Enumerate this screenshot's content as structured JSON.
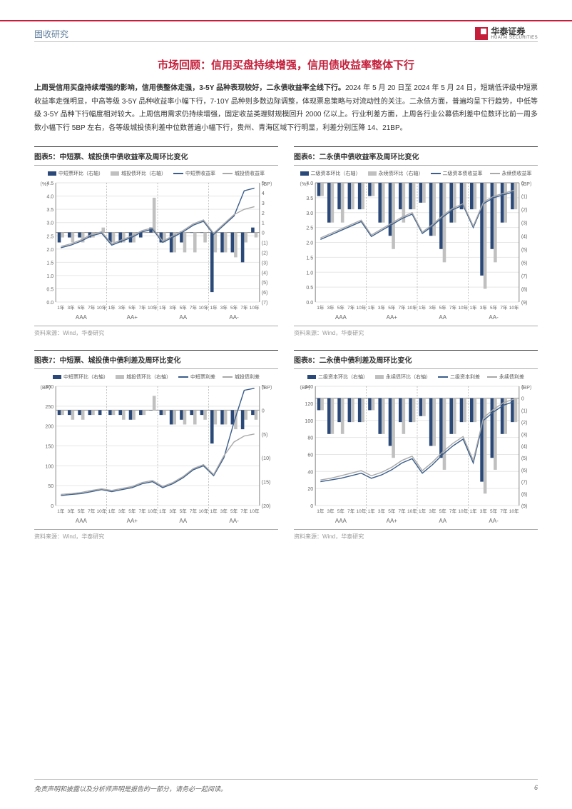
{
  "header": {
    "category": "固收研究",
    "logo_cn": "华泰证券",
    "logo_en": "HUATAI SECURITIES"
  },
  "section_title": "市场回顾：信用买盘持续增强，信用债收益率整体下行",
  "paragraph_strong": "上周受信用买盘持续增强的影响，信用债整体走强，3-5Y 品种表现较好，二永债收益率全线下行。",
  "paragraph_rest": "2024 年 5 月 20 日至 2024 年 5 月 24 日，短端低评级中短票收益率走强明显，中高等级 3-5Y 品种收益率小幅下行，7-10Y 品种则多数边际调整，体现票息策略与对流动性的关注。二永债方面，普遍均呈下行趋势，中低等级 3-5Y 品种下行幅度相对较大。上周信用需求仍持续增强，固定收益类理财规模回升 2000 亿以上。行业利差方面，上周各行业公募债利差中位数环比前一周多数小幅下行 5BP 左右，各等级城投债利差中位数普遍小幅下行，贵州、青海区域下行明显，利差分别压降 14、21BP。",
  "footer": {
    "disclaimer": "免责声明和披露以及分析师声明是报告的一部分，请务必一起阅读。",
    "page_number": "6"
  },
  "source_text": "资料来源：Wind，华泰研究",
  "xaxis_groups": [
    "AAA",
    "AA+",
    "AA",
    "AA-"
  ],
  "xaxis_tenors": [
    "1年",
    "3年",
    "5年",
    "7年",
    "10年"
  ],
  "colors": {
    "bar1": "#2a4978",
    "bar2": "#c0c0c0",
    "line1": "#3b5e8c",
    "line2": "#a9a9a9",
    "grid": "#e6e6e6",
    "axis": "#888888",
    "text": "#666666"
  },
  "chart5": {
    "title": "图表5：中短票、城投债中债收益率及周环比变化",
    "legend": [
      "中短票环比（右轴）",
      "城投债环比（右轴）",
      "中短票收益率",
      "城投债收益率"
    ],
    "y_left_label": "（%）",
    "y_right_label": "（BP）",
    "y_left": {
      "min": 0.0,
      "max": 4.5,
      "step": 0.5
    },
    "y_right": {
      "min": -7,
      "max": 5,
      "step": 1
    },
    "bars1": [
      -1,
      -0.5,
      -0.5,
      -0.5,
      0,
      -1,
      -1,
      -1,
      -0.5,
      0.5,
      -1,
      -2,
      -1,
      0,
      0,
      -6,
      -2,
      -2,
      -3,
      0.5
    ],
    "bars2": [
      -0.5,
      -1,
      -1,
      -0.5,
      0.5,
      -1,
      -1,
      -1,
      0,
      3.5,
      -1,
      -2,
      -2,
      -2,
      -1,
      -2,
      -2,
      -2.5,
      -1,
      -0.5
    ],
    "line1v": [
      2.05,
      2.15,
      2.3,
      2.5,
      2.6,
      2.15,
      2.3,
      2.45,
      2.65,
      2.75,
      2.25,
      2.45,
      2.65,
      2.9,
      3.05,
      2.55,
      2.9,
      3.25,
      4.2,
      4.3
    ],
    "line2v": [
      2.1,
      2.2,
      2.35,
      2.55,
      2.65,
      2.2,
      2.35,
      2.5,
      2.7,
      2.8,
      2.3,
      2.5,
      2.7,
      2.95,
      3.1,
      2.6,
      2.95,
      3.3,
      3.5,
      3.6
    ]
  },
  "chart6": {
    "title": "图表6：二永债中债收益率及周环比变化",
    "legend": [
      "二级资本环比（右轴）",
      "永续债环比（右轴）",
      "二级资本债收益率",
      "永续债收益率"
    ],
    "y_left_label": "（%）",
    "y_right_label": "（BP）",
    "y_left": {
      "min": 0.0,
      "max": 4.0,
      "step": 0.5
    },
    "y_right": {
      "min": -9,
      "max": 0,
      "step": 1
    },
    "bars1": [
      -1,
      -3,
      -2,
      -2,
      -2,
      -1,
      -3,
      -4,
      -2,
      -2,
      -1.5,
      -4,
      -5,
      -3,
      -2,
      -2,
      -7,
      -5,
      -3,
      -2
    ],
    "bars2": [
      -1,
      -3,
      -3,
      -2,
      -2,
      -1,
      -3,
      -5,
      -3,
      -2,
      -1.5,
      -4,
      -6,
      -3,
      -2,
      -2,
      -8,
      -6,
      -3,
      -2
    ],
    "line1v": [
      2.1,
      2.25,
      2.4,
      2.55,
      2.7,
      2.2,
      2.4,
      2.6,
      2.8,
      2.95,
      2.3,
      2.55,
      2.85,
      3.1,
      3.25,
      2.5,
      3.3,
      3.5,
      3.6,
      3.7
    ],
    "line2v": [
      2.15,
      2.3,
      2.45,
      2.6,
      2.75,
      2.25,
      2.45,
      2.65,
      2.85,
      3.0,
      2.35,
      2.6,
      2.9,
      3.15,
      3.3,
      2.55,
      3.35,
      3.55,
      3.65,
      3.75
    ]
  },
  "chart7": {
    "title": "图表7：中短票、城投债中债利差及周环比变化",
    "legend": [
      "中短票环比（右轴）",
      "城投债环比（右轴）",
      "中短票利差",
      "城投债利差"
    ],
    "y_left_label": "（BP）",
    "y_right_label": "（BP）",
    "y_left": {
      "min": 0,
      "max": 300,
      "step": 50
    },
    "y_right": {
      "min": -20,
      "max": 5,
      "step": 5
    },
    "bars1": [
      -1,
      -1,
      -1,
      -1,
      -1,
      -1,
      -1,
      -2,
      -1,
      0,
      -1,
      -3,
      -2,
      -1,
      -1,
      -7,
      -3,
      -3,
      -4,
      -1
    ],
    "bars2": [
      -1,
      -2,
      -2,
      -1,
      0,
      -1,
      -2,
      -2,
      -1,
      3,
      -1,
      -3,
      -3,
      -3,
      -2,
      -3,
      -3,
      -4,
      -2,
      -2
    ],
    "line1v": [
      25,
      28,
      30,
      35,
      40,
      35,
      40,
      45,
      55,
      60,
      45,
      55,
      70,
      90,
      100,
      75,
      120,
      210,
      290,
      295
    ],
    "line2v": [
      28,
      30,
      33,
      38,
      42,
      38,
      43,
      48,
      58,
      63,
      48,
      58,
      73,
      93,
      103,
      78,
      125,
      160,
      175,
      180
    ]
  },
  "chart8": {
    "title": "图表8：二永债中债利差及周环比变化",
    "legend": [
      "二级资本环比（右轴）",
      "永续债环比（右轴）",
      "二级资本利差",
      "永续债利差"
    ],
    "y_left_label": "（BP）",
    "y_right_label": "（BP）",
    "y_left": {
      "min": 0,
      "max": 140,
      "step": 20
    },
    "y_right": {
      "min": -9,
      "max": 1,
      "step": 1
    },
    "bars1": [
      -1,
      -3,
      -2,
      -2,
      -2,
      -1,
      -3,
      -4,
      -2,
      -2,
      -1.5,
      -4,
      -5,
      -3,
      -2,
      -2,
      -7,
      -5,
      -3,
      -2
    ],
    "bars2": [
      -1,
      -3,
      -3,
      -2,
      -2,
      -1,
      -3,
      -5,
      -3,
      -2,
      -1.5,
      -4,
      -6,
      -3,
      -2,
      -2,
      -8,
      -6,
      -3,
      -2
    ],
    "line1v": [
      28,
      30,
      32,
      35,
      38,
      32,
      36,
      42,
      50,
      55,
      38,
      48,
      60,
      70,
      78,
      50,
      100,
      110,
      118,
      122
    ],
    "line2v": [
      30,
      32,
      35,
      38,
      41,
      35,
      39,
      45,
      53,
      58,
      41,
      51,
      63,
      73,
      81,
      53,
      103,
      113,
      121,
      125
    ]
  }
}
